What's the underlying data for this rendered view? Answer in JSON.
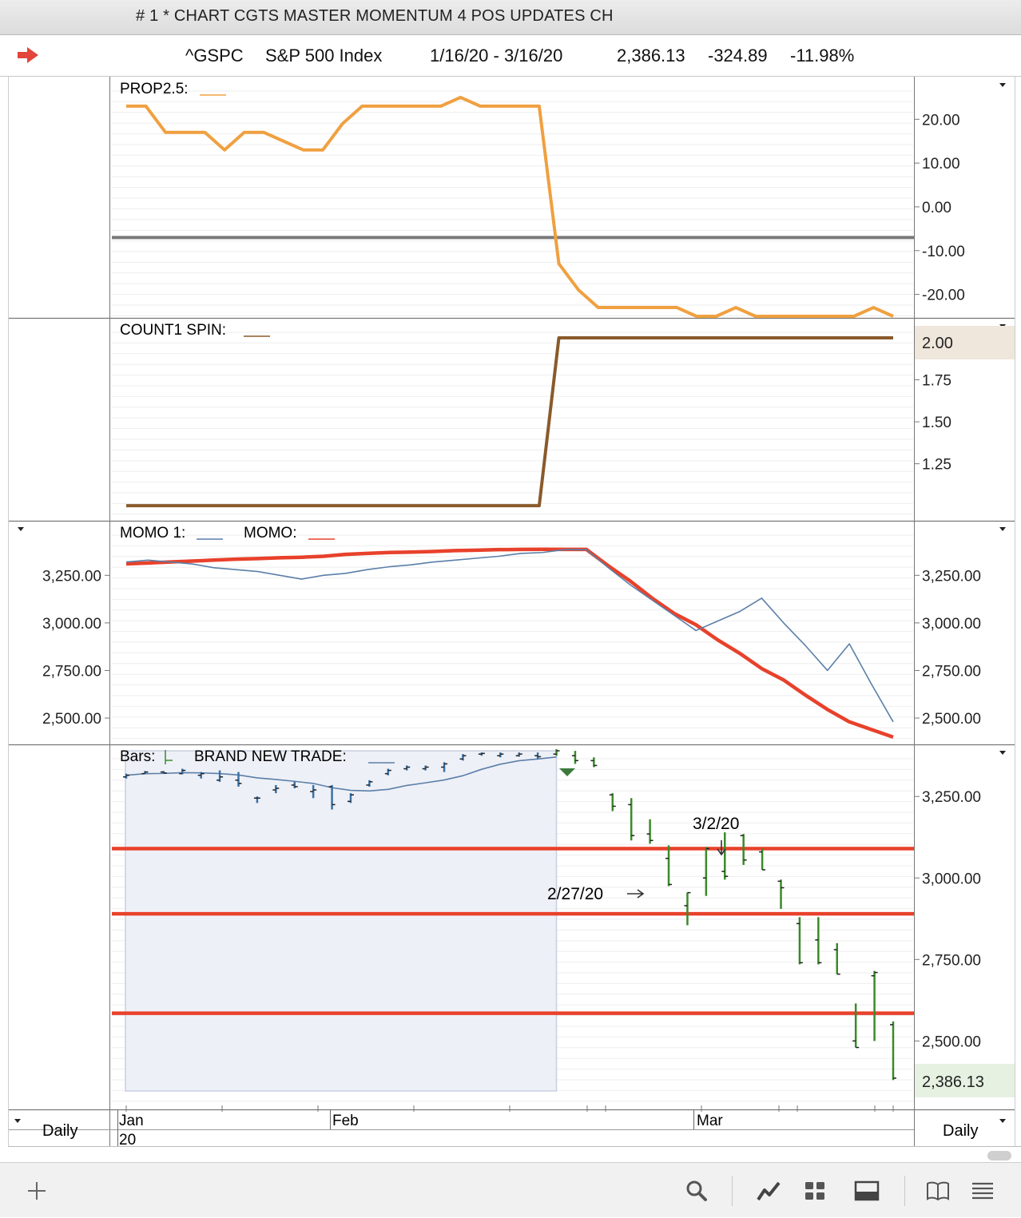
{
  "window": {
    "title": "# 1 * CHART CGTS MASTER MOMENTUM 4 POS UPDATES CH"
  },
  "header": {
    "symbol": "^GSPC",
    "name": "S&P 500 Index",
    "date_range": "1/16/20 - 3/16/20",
    "last": "2,386.13",
    "change": "-324.89",
    "change_pct": "-11.98%"
  },
  "colors": {
    "prop": "#f0a040",
    "count": "#8a5a2b",
    "momo1": "#5b7fa8",
    "momo": "#e8412b",
    "bars_up": "#3b8a2a",
    "bars_old": "#3a72a8",
    "hline": "#e8412b",
    "zero_line": "#7a7a7a"
  },
  "panes": {
    "prop": {
      "label": "PROP2.5:",
      "ticks": [
        "20.00",
        "10.00",
        "0.00",
        "-10.00",
        "-20.00"
      ]
    },
    "count": {
      "label": "COUNT1 SPIN:",
      "ticks": [
        "1.75",
        "1.50",
        "1.25"
      ],
      "last_value": "2.00"
    },
    "momo": {
      "label1": "MOMO 1:",
      "label2": "MOMO:",
      "ticks_left": [
        "3,250.00",
        "3,000.00",
        "2,750.00",
        "2,500.00"
      ],
      "ticks_right": [
        "3,250.00",
        "3,000.00",
        "2,750.00",
        "2,500.00"
      ]
    },
    "bars": {
      "label1": "Bars:",
      "label2": "BRAND NEW TRADE:",
      "ticks": [
        "3,250.00",
        "3,000.00",
        "2,750.00",
        "2,500.00"
      ],
      "last_value": "2,386.13",
      "annotation_a": "3/2/20",
      "annotation_b": "2/27/20"
    }
  },
  "xaxis": {
    "period_left": "Daily",
    "period_right": "Daily",
    "month_jan": "Jan",
    "year": "20",
    "month_feb": "Feb",
    "month_mar": "Mar"
  },
  "chart_data": [
    {
      "type": "line",
      "title": "PROP2.5",
      "series": [
        {
          "name": "PROP2.5",
          "values": [
            23,
            23,
            17,
            17,
            17,
            13,
            17,
            17,
            15,
            13,
            13,
            19,
            23,
            23,
            23,
            23,
            23,
            25,
            23,
            23,
            23,
            23,
            -13,
            -19,
            -23,
            -23,
            -23,
            -23,
            -23,
            -25,
            -25,
            -23,
            -25,
            -25,
            -25,
            -25,
            -25,
            -25,
            -23,
            -25
          ]
        }
      ],
      "ylim": [
        -25,
        29
      ],
      "reference_line": -7
    },
    {
      "type": "line",
      "title": "COUNT1 SPIN",
      "series": [
        {
          "name": "COUNT1 SPIN",
          "values": [
            1,
            1,
            1,
            1,
            1,
            1,
            1,
            1,
            1,
            1,
            1,
            1,
            1,
            1,
            1,
            1,
            1,
            1,
            1,
            1,
            1,
            1,
            2,
            2,
            2,
            2,
            2,
            2,
            2,
            2,
            2,
            2,
            2,
            2,
            2,
            2,
            2,
            2,
            2,
            2
          ]
        }
      ],
      "ylim": [
        0.92,
        2.1
      ]
    },
    {
      "type": "line",
      "title": "MOMO",
      "series": [
        {
          "name": "MOMO 1",
          "values": [
            3320,
            3330,
            3320,
            3310,
            3290,
            3280,
            3270,
            3250,
            3230,
            3250,
            3260,
            3280,
            3295,
            3305,
            3320,
            3330,
            3340,
            3350,
            3365,
            3370,
            3385,
            3385,
            3290,
            3200,
            3120,
            3040,
            2960,
            3010,
            3060,
            3130,
            3000,
            2880,
            2750,
            2890,
            2680,
            2480
          ]
        },
        {
          "name": "MOMO",
          "values": [
            3310,
            3315,
            3320,
            3325,
            3330,
            3335,
            3338,
            3342,
            3345,
            3350,
            3360,
            3365,
            3370,
            3372,
            3375,
            3380,
            3382,
            3385,
            3386,
            3387,
            3386,
            3386,
            3300,
            3220,
            3130,
            3050,
            2990,
            2910,
            2840,
            2760,
            2700,
            2620,
            2545,
            2480,
            2440,
            2400
          ]
        }
      ],
      "ylim": [
        2370,
        3520
      ]
    },
    {
      "type": "bar",
      "title": "Bars",
      "series": [
        {
          "name": "OHLC",
          "values": [
            {
              "o": 3310,
              "h": 3320,
              "l": 3305,
              "c": 3315
            },
            {
              "o": 3320,
              "h": 3328,
              "l": 3318,
              "c": 3325
            },
            {
              "o": 3325,
              "h": 3328,
              "l": 3320,
              "c": 3322
            },
            {
              "o": 3320,
              "h": 3335,
              "l": 3318,
              "c": 3330
            },
            {
              "o": 3315,
              "h": 3325,
              "l": 3305,
              "c": 3320
            },
            {
              "o": 3300,
              "h": 3330,
              "l": 3295,
              "c": 3310
            },
            {
              "o": 3300,
              "h": 3325,
              "l": 3280,
              "c": 3290
            },
            {
              "o": 3245,
              "h": 3250,
              "l": 3230,
              "c": 3245
            },
            {
              "o": 3270,
              "h": 3285,
              "l": 3260,
              "c": 3275
            },
            {
              "o": 3285,
              "h": 3295,
              "l": 3275,
              "c": 3280
            },
            {
              "o": 3265,
              "h": 3285,
              "l": 3245,
              "c": 3270
            },
            {
              "o": 3280,
              "h": 3285,
              "l": 3210,
              "c": 3225
            },
            {
              "o": 3235,
              "h": 3260,
              "l": 3230,
              "c": 3255
            },
            {
              "o": 3285,
              "h": 3300,
              "l": 3280,
              "c": 3295
            },
            {
              "o": 3320,
              "h": 3335,
              "l": 3315,
              "c": 3330
            },
            {
              "o": 3335,
              "h": 3345,
              "l": 3330,
              "c": 3340
            },
            {
              "o": 3335,
              "h": 3345,
              "l": 3330,
              "c": 3340
            },
            {
              "o": 3340,
              "h": 3355,
              "l": 3325,
              "c": 3350
            },
            {
              "o": 3365,
              "h": 3380,
              "l": 3360,
              "c": 3375
            },
            {
              "o": 3380,
              "h": 3385,
              "l": 3375,
              "c": 3382
            },
            {
              "o": 3375,
              "h": 3385,
              "l": 3370,
              "c": 3380
            },
            {
              "o": 3375,
              "h": 3385,
              "l": 3372,
              "c": 3380
            },
            {
              "o": 3375,
              "h": 3385,
              "l": 3365,
              "c": 3372
            },
            {
              "o": 3380,
              "h": 3395,
              "l": 3375,
              "c": 3390
            },
            {
              "o": 3375,
              "h": 3390,
              "l": 3350,
              "c": 3360
            },
            {
              "o": 3360,
              "h": 3370,
              "l": 3340,
              "c": 3345
            },
            {
              "o": 3255,
              "h": 3260,
              "l": 3205,
              "c": 3220
            },
            {
              "o": 3225,
              "h": 3245,
              "l": 3115,
              "c": 3130
            },
            {
              "o": 3135,
              "h": 3180,
              "l": 3105,
              "c": 3115
            },
            {
              "o": 3060,
              "h": 3100,
              "l": 2975,
              "c": 2980
            },
            {
              "o": 2915,
              "h": 2955,
              "l": 2855,
              "c": 2955
            },
            {
              "o": 3000,
              "h": 3095,
              "l": 2945,
              "c": 3090
            },
            {
              "o": 3020,
              "h": 3140,
              "l": 2995,
              "c": 3005
            },
            {
              "o": 3130,
              "h": 3135,
              "l": 3040,
              "c": 3055
            },
            {
              "o": 3080,
              "h": 3090,
              "l": 3025,
              "c": 3025
            },
            {
              "o": 2990,
              "h": 2995,
              "l": 2905,
              "c": 2970
            },
            {
              "o": 2860,
              "h": 2880,
              "l": 2735,
              "c": 2740
            },
            {
              "o": 2810,
              "h": 2880,
              "l": 2735,
              "c": 2740
            },
            {
              "o": 2780,
              "h": 2800,
              "l": 2705,
              "c": 2705
            },
            {
              "o": 2500,
              "h": 2615,
              "l": 2480,
              "c": 2480
            },
            {
              "o": 2700,
              "h": 2715,
              "l": 2500,
              "c": 2710
            },
            {
              "o": 2550,
              "h": 2560,
              "l": 2380,
              "c": 2386
            }
          ]
        }
      ],
      "horizontal_lines": [
        3090,
        2890,
        2585
      ],
      "ylim": [
        2295,
        3400
      ]
    }
  ]
}
